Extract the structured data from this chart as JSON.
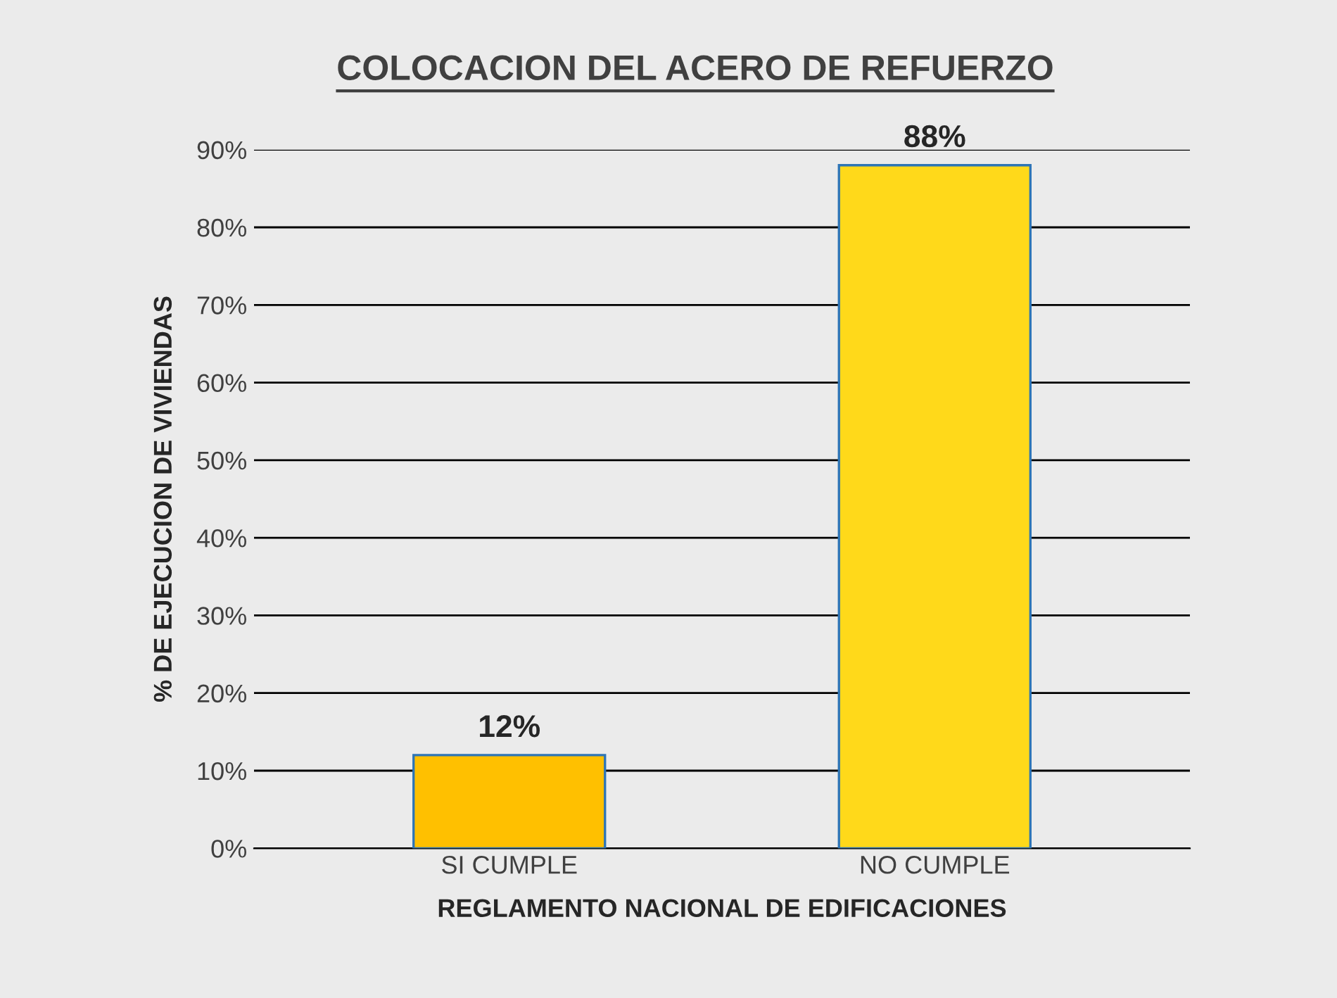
{
  "chart_data": {
    "type": "bar",
    "title": "COLOCACION DEL ACERO DE REFUERZO",
    "xlabel": "REGLAMENTO NACIONAL DE EDIFICACIONES",
    "ylabel": "% DE EJECUCION DE VIVIENDAS",
    "categories": [
      "SI CUMPLE",
      "NO CUMPLE"
    ],
    "values": [
      12,
      88
    ],
    "colors": [
      "#ffc000",
      "#ffd91a"
    ],
    "value_labels": [
      "12%",
      "88%"
    ],
    "ylim": [
      0,
      90
    ],
    "yticks": [
      {
        "value": 0,
        "label": "0%"
      },
      {
        "value": 10,
        "label": "10%"
      },
      {
        "value": 20,
        "label": "20%"
      },
      {
        "value": 30,
        "label": "30%"
      },
      {
        "value": 40,
        "label": "40%"
      },
      {
        "value": 50,
        "label": "50%"
      },
      {
        "value": 60,
        "label": "60%"
      },
      {
        "value": 70,
        "label": "70%"
      },
      {
        "value": 80,
        "label": "80%"
      },
      {
        "value": 90,
        "label": "90%"
      }
    ],
    "grid": "y",
    "legend": false
  }
}
